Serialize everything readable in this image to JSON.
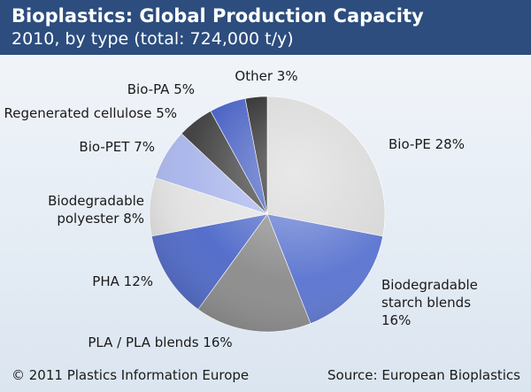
{
  "header": {
    "title": "Bioplastics: Global Production Capacity",
    "subtitle": "2010, by type (total: 724,000 t/y)"
  },
  "footer": {
    "copyright": "© 2011 Plastics Information Europe",
    "source": "Source: European Bioplastics"
  },
  "chart_data": {
    "type": "pie",
    "title": "Bioplastics: Global Production Capacity",
    "subtitle": "2010, by type (total: 724,000 t/y)",
    "unit": "%",
    "slices": [
      {
        "name": "Bio-PE",
        "value": 28,
        "color": "#d6d6d6",
        "label_lines": [
          "Bio-PE 28%"
        ]
      },
      {
        "name": "Biodegradable starch blends",
        "value": 16,
        "color": "#5872cf",
        "label_lines": [
          "Biodegradable",
          "starch blends",
          "16%"
        ]
      },
      {
        "name": "PLA / PLA blends",
        "value": 16,
        "color": "#8a8a8a",
        "label_lines": [
          "PLA / PLA blends 16%"
        ]
      },
      {
        "name": "PHA",
        "value": 12,
        "color": "#4c67c8",
        "label_lines": [
          "PHA 12%"
        ]
      },
      {
        "name": "Biodegradable polyester",
        "value": 8,
        "color": "#e2e2e2",
        "label_lines": [
          "Biodegradable",
          "polyester 8%"
        ]
      },
      {
        "name": "Bio-PET",
        "value": 7,
        "color": "#a7b4ea",
        "label_lines": [
          "Bio-PET 7%"
        ]
      },
      {
        "name": "Regenerated cellulose",
        "value": 5,
        "color": "#3a3a3a",
        "label_lines": [
          "Regenerated cellulose 5%"
        ]
      },
      {
        "name": "Bio-PA",
        "value": 5,
        "color": "#3d57c0",
        "label_lines": [
          "Bio-PA 5%"
        ]
      },
      {
        "name": "Other",
        "value": 3,
        "color": "#1c1c1c",
        "label_lines": [
          "Other 3%"
        ]
      }
    ]
  }
}
